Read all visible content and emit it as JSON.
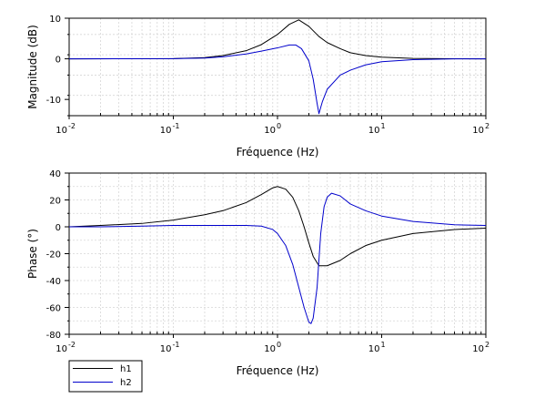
{
  "chart_data": [
    {
      "type": "line",
      "xscale": "log",
      "xlim": [
        0.01,
        100
      ],
      "ylim": [
        -14,
        10
      ],
      "xlabel": "Fréquence (Hz)",
      "ylabel": "Magnitude (dB)",
      "xticks": [
        {
          "base": "10",
          "exp": "-2"
        },
        {
          "base": "10",
          "exp": "-1"
        },
        {
          "base": "10",
          "exp": "0"
        },
        {
          "base": "10",
          "exp": "1"
        },
        {
          "base": "10",
          "exp": "2"
        }
      ],
      "yticks": [
        10,
        0,
        -10
      ],
      "ytick_labels": [
        "10",
        "0",
        "-10"
      ],
      "grid": true,
      "series": [
        {
          "name": "h1",
          "color": "#000000",
          "x": [
            0.01,
            0.1,
            0.2,
            0.3,
            0.5,
            0.7,
            1.0,
            1.3,
            1.6,
            2.0,
            2.5,
            3.0,
            4.0,
            5.0,
            7.0,
            10,
            20,
            50,
            100
          ],
          "y": [
            0,
            0.05,
            0.3,
            0.8,
            2.0,
            3.5,
            6.0,
            8.5,
            9.6,
            8.0,
            5.5,
            4.0,
            2.5,
            1.5,
            0.8,
            0.4,
            0.1,
            0.02,
            0
          ]
        },
        {
          "name": "h2",
          "color": "#0000cc",
          "x": [
            0.01,
            0.1,
            0.2,
            0.3,
            0.5,
            0.7,
            1.0,
            1.3,
            1.5,
            1.7,
            2.0,
            2.2,
            2.4,
            2.5,
            2.7,
            3.0,
            4.0,
            5.0,
            7.0,
            10,
            20,
            50,
            100
          ],
          "y": [
            0,
            0.05,
            0.2,
            0.5,
            1.2,
            1.9,
            2.7,
            3.4,
            3.4,
            2.5,
            -0.5,
            -5.0,
            -11.0,
            -13.5,
            -10.5,
            -7.5,
            -4.0,
            -2.8,
            -1.5,
            -0.7,
            -0.2,
            0,
            0
          ]
        }
      ]
    },
    {
      "type": "line",
      "xscale": "log",
      "xlim": [
        0.01,
        100
      ],
      "ylim": [
        -80,
        40
      ],
      "xlabel": "Fréquence (Hz)",
      "ylabel": "Phase (°)",
      "xticks": [
        {
          "base": "10",
          "exp": "-2"
        },
        {
          "base": "10",
          "exp": "-1"
        },
        {
          "base": "10",
          "exp": "0"
        },
        {
          "base": "10",
          "exp": "1"
        },
        {
          "base": "10",
          "exp": "2"
        }
      ],
      "yticks": [
        40,
        20,
        0,
        -20,
        -40,
        -60,
        -80
      ],
      "ytick_labels": [
        "40",
        "20",
        "0",
        "-20",
        "-40",
        "-60",
        "-80"
      ],
      "grid": true,
      "legend_position": "bottom-left",
      "series": [
        {
          "name": "h1",
          "color": "#000000",
          "x": [
            0.01,
            0.02,
            0.05,
            0.1,
            0.2,
            0.3,
            0.5,
            0.7,
            0.9,
            1.0,
            1.2,
            1.4,
            1.6,
            1.8,
            2.0,
            2.2,
            2.5,
            3.0,
            4.0,
            5.0,
            7.0,
            10,
            20,
            50,
            100
          ],
          "y": [
            0,
            1,
            2.5,
            5,
            9,
            12,
            18,
            24,
            29,
            30,
            28,
            22,
            12,
            0,
            -12,
            -22,
            -29,
            -29,
            -25,
            -20,
            -14,
            -10,
            -5,
            -2,
            -1
          ]
        },
        {
          "name": "h2",
          "color": "#0000cc",
          "x": [
            0.01,
            0.02,
            0.05,
            0.1,
            0.2,
            0.3,
            0.5,
            0.7,
            0.9,
            1.0,
            1.2,
            1.4,
            1.6,
            1.8,
            2.0,
            2.1,
            2.2,
            2.4,
            2.6,
            2.8,
            3.0,
            3.3,
            4.0,
            5.0,
            7.0,
            10,
            20,
            50,
            100
          ],
          "y": [
            0,
            0,
            0.5,
            1,
            1,
            1,
            1,
            0.5,
            -2,
            -5,
            -14,
            -28,
            -45,
            -60,
            -71,
            -72,
            -68,
            -45,
            -5,
            15,
            22,
            25,
            23,
            17,
            12,
            8,
            4,
            1.5,
            1
          ]
        }
      ]
    }
  ]
}
